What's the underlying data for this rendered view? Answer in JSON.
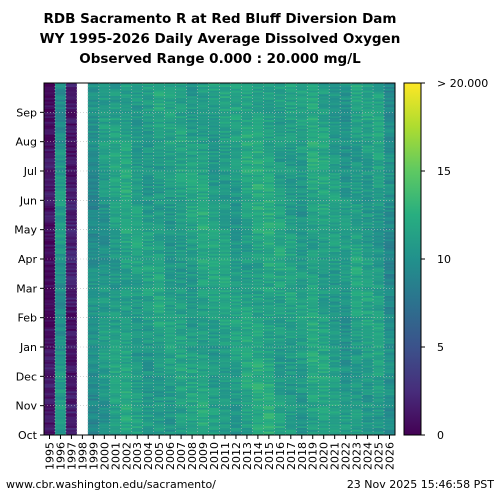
{
  "chart_data": {
    "type": "heatmap",
    "title_lines": [
      "RDB Sacramento R at Red Bluff Diversion Dam",
      "WY 1995-2026 Daily Average Dissolved Oxygen",
      "Observed Range 0.000 : 20.000 mg/L"
    ],
    "x": [
      "1995",
      "1996",
      "1997",
      "1998",
      "1999",
      "2000",
      "2001",
      "2002",
      "2003",
      "2004",
      "2005",
      "2006",
      "2007",
      "2008",
      "2009",
      "2010",
      "2011",
      "2012",
      "2013",
      "2014",
      "2015",
      "2016",
      "2017",
      "2018",
      "2019",
      "2020",
      "2021",
      "2022",
      "2023",
      "2024",
      "2025",
      "2026"
    ],
    "y": [
      "Oct",
      "Nov",
      "Dec",
      "Jan",
      "Feb",
      "Mar",
      "Apr",
      "May",
      "Jun",
      "Jul",
      "Aug",
      "Sep"
    ],
    "colorbar": {
      "ticks": [
        {
          "value": 0,
          "label": "0"
        },
        {
          "value": 5,
          "label": "5"
        },
        {
          "value": 10,
          "label": "10"
        },
        {
          "value": 15,
          "label": "15"
        },
        {
          "value": 20,
          "label": "> 20.000"
        }
      ],
      "range": [
        0,
        20
      ],
      "colormap": "viridis"
    },
    "missing_color": "#ffffff",
    "grid": true,
    "year_base": {
      "1995": 0.8,
      "1996": 10.3,
      "1997": 1.5,
      "1998": null,
      "1999": 9.8,
      "2000": 10.6,
      "2001": 11.2,
      "2002": 11.6,
      "2003": 11.1,
      "2004": 11.0,
      "2005": 11.3,
      "2006": 11.0,
      "2007": 11.2,
      "2008": 11.1,
      "2009": 11.6,
      "2010": 11.2,
      "2011": 11.3,
      "2012": 11.0,
      "2013": 11.5,
      "2014": 11.8,
      "2015": 11.9,
      "2016": 11.4,
      "2017": 11.2,
      "2018": 11.0,
      "2019": 11.7,
      "2020": 11.4,
      "2021": 11.0,
      "2022": 10.6,
      "2023": 11.3,
      "2024": 11.1,
      "2025": 11.1,
      "2026": 9.6
    }
  },
  "footer": {
    "left": "www.cbr.washington.edu/sacramento/",
    "right": "23 Nov 2025 15:46:58 PST"
  }
}
